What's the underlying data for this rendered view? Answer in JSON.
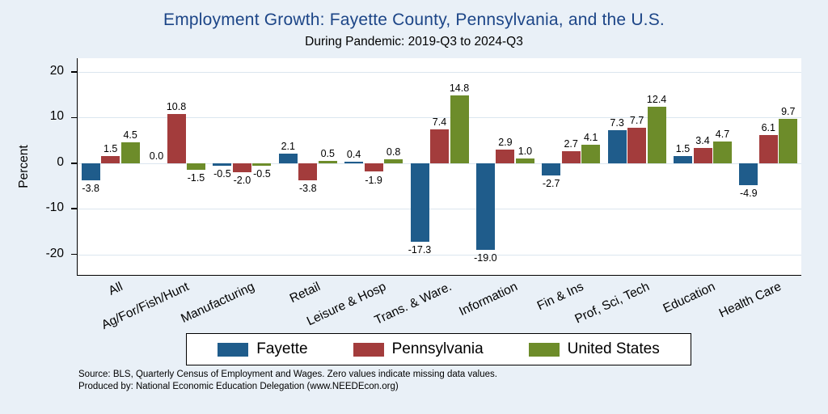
{
  "colors": {
    "background": "#e9f0f7",
    "plot_background": "#ffffff",
    "title_text": "#1c4587",
    "gridline": "#dbe6ef",
    "axis": "#000000"
  },
  "notes": {
    "line1": "Source: BLS, Quarterly Census of Employment and Wages. Zero values indicate missing data values.",
    "line2": "Produced by: National Economic Education Delegation (www.NEEDEcon.org)"
  },
  "chart_data": {
    "type": "bar",
    "title": "Employment Growth: Fayette County, Pennsylvania, and the U.S.",
    "subtitle": "During Pandemic: 2019-Q3 to 2024-Q3",
    "ylabel": "Percent",
    "xlabel": "",
    "categories": [
      "All",
      "Ag/For/Fish/Hunt",
      "Manufacturing",
      "Retail",
      "Leisure & Hosp",
      "Trans. & Ware.",
      "Information",
      "Fin & Ins",
      "Prof, Sci, Tech",
      "Education",
      "Health Care"
    ],
    "series": [
      {
        "name": "Fayette",
        "color": "#1f5c8b",
        "values": [
          -3.8,
          0.0,
          -0.5,
          2.1,
          0.4,
          -17.3,
          -19.0,
          -2.7,
          7.3,
          1.5,
          -4.9
        ]
      },
      {
        "name": "Pennsylvania",
        "color": "#a33c3c",
        "values": [
          1.5,
          10.8,
          -2.0,
          -3.8,
          -1.9,
          7.4,
          2.9,
          2.7,
          7.7,
          3.4,
          6.1
        ]
      },
      {
        "name": "United States",
        "color": "#6d8c2a",
        "values": [
          4.5,
          -1.5,
          -0.5,
          0.5,
          0.8,
          14.8,
          1.0,
          4.1,
          12.4,
          4.7,
          9.7
        ]
      }
    ],
    "yticks": [
      20,
      10,
      0,
      -10,
      -20
    ],
    "ylim": [
      -24.5,
      23
    ],
    "grid": true,
    "bar_labels": true,
    "legend_position": "bottom"
  }
}
